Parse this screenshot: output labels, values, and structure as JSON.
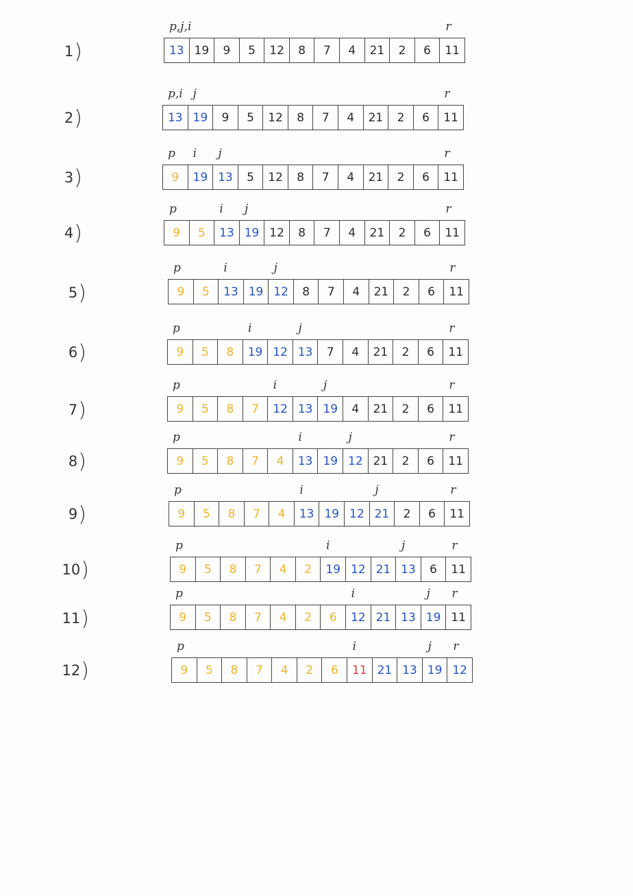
{
  "colors": {
    "black": "#2a2a2a",
    "blue": "#2454c6",
    "yellow": "#f0b429",
    "red": "#e23b3b"
  },
  "steps": [
    {
      "label": "1",
      "pointers": [
        {
          "text": "p,j,i",
          "cell": 0
        },
        {
          "text": "r",
          "cell": 11
        }
      ],
      "cells": [
        {
          "v": "13",
          "c": "blue"
        },
        {
          "v": "19",
          "c": "black"
        },
        {
          "v": "9",
          "c": "black"
        },
        {
          "v": "5",
          "c": "black"
        },
        {
          "v": "12",
          "c": "black"
        },
        {
          "v": "8",
          "c": "black"
        },
        {
          "v": "7",
          "c": "black"
        },
        {
          "v": "4",
          "c": "black"
        },
        {
          "v": "21",
          "c": "black"
        },
        {
          "v": "2",
          "c": "black"
        },
        {
          "v": "6",
          "c": "black"
        },
        {
          "v": "11",
          "c": "black"
        }
      ]
    },
    {
      "label": "2",
      "pointers": [
        {
          "text": "p,i",
          "cell": 0
        },
        {
          "text": "j",
          "cell": 1
        },
        {
          "text": "r",
          "cell": 11
        }
      ],
      "cells": [
        {
          "v": "13",
          "c": "blue"
        },
        {
          "v": "19",
          "c": "blue"
        },
        {
          "v": "9",
          "c": "black"
        },
        {
          "v": "5",
          "c": "black"
        },
        {
          "v": "12",
          "c": "black"
        },
        {
          "v": "8",
          "c": "black"
        },
        {
          "v": "7",
          "c": "black"
        },
        {
          "v": "4",
          "c": "black"
        },
        {
          "v": "21",
          "c": "black"
        },
        {
          "v": "2",
          "c": "black"
        },
        {
          "v": "6",
          "c": "black"
        },
        {
          "v": "11",
          "c": "black"
        }
      ]
    },
    {
      "label": "3",
      "pointers": [
        {
          "text": "p",
          "cell": 0
        },
        {
          "text": "i",
          "cell": 1
        },
        {
          "text": "j",
          "cell": 2
        },
        {
          "text": "r",
          "cell": 11
        }
      ],
      "cells": [
        {
          "v": "9",
          "c": "yellow"
        },
        {
          "v": "19",
          "c": "blue"
        },
        {
          "v": "13",
          "c": "blue"
        },
        {
          "v": "5",
          "c": "black"
        },
        {
          "v": "12",
          "c": "black"
        },
        {
          "v": "8",
          "c": "black"
        },
        {
          "v": "7",
          "c": "black"
        },
        {
          "v": "4",
          "c": "black"
        },
        {
          "v": "21",
          "c": "black"
        },
        {
          "v": "2",
          "c": "black"
        },
        {
          "v": "6",
          "c": "black"
        },
        {
          "v": "11",
          "c": "black"
        }
      ]
    },
    {
      "label": "4",
      "pointers": [
        {
          "text": "p",
          "cell": 0
        },
        {
          "text": "i",
          "cell": 2
        },
        {
          "text": "j",
          "cell": 3
        },
        {
          "text": "r",
          "cell": 11
        }
      ],
      "cells": [
        {
          "v": "9",
          "c": "yellow"
        },
        {
          "v": "5",
          "c": "yellow"
        },
        {
          "v": "13",
          "c": "blue"
        },
        {
          "v": "19",
          "c": "blue"
        },
        {
          "v": "12",
          "c": "black"
        },
        {
          "v": "8",
          "c": "black"
        },
        {
          "v": "7",
          "c": "black"
        },
        {
          "v": "4",
          "c": "black"
        },
        {
          "v": "21",
          "c": "black"
        },
        {
          "v": "2",
          "c": "black"
        },
        {
          "v": "6",
          "c": "black"
        },
        {
          "v": "11",
          "c": "black"
        }
      ]
    },
    {
      "label": "5",
      "pointers": [
        {
          "text": "p",
          "cell": 0
        },
        {
          "text": "i",
          "cell": 2
        },
        {
          "text": "j",
          "cell": 4
        },
        {
          "text": "r",
          "cell": 11
        }
      ],
      "cells": [
        {
          "v": "9",
          "c": "yellow"
        },
        {
          "v": "5",
          "c": "yellow"
        },
        {
          "v": "13",
          "c": "blue"
        },
        {
          "v": "19",
          "c": "blue"
        },
        {
          "v": "12",
          "c": "blue"
        },
        {
          "v": "8",
          "c": "black"
        },
        {
          "v": "7",
          "c": "black"
        },
        {
          "v": "4",
          "c": "black"
        },
        {
          "v": "21",
          "c": "black"
        },
        {
          "v": "2",
          "c": "black"
        },
        {
          "v": "6",
          "c": "black"
        },
        {
          "v": "11",
          "c": "black"
        }
      ]
    },
    {
      "label": "6",
      "pointers": [
        {
          "text": "p",
          "cell": 0
        },
        {
          "text": "i",
          "cell": 3
        },
        {
          "text": "j",
          "cell": 5
        },
        {
          "text": "r",
          "cell": 11
        }
      ],
      "cells": [
        {
          "v": "9",
          "c": "yellow"
        },
        {
          "v": "5",
          "c": "yellow"
        },
        {
          "v": "8",
          "c": "yellow"
        },
        {
          "v": "19",
          "c": "blue"
        },
        {
          "v": "12",
          "c": "blue"
        },
        {
          "v": "13",
          "c": "blue"
        },
        {
          "v": "7",
          "c": "black"
        },
        {
          "v": "4",
          "c": "black"
        },
        {
          "v": "21",
          "c": "black"
        },
        {
          "v": "2",
          "c": "black"
        },
        {
          "v": "6",
          "c": "black"
        },
        {
          "v": "11",
          "c": "black"
        }
      ]
    },
    {
      "label": "7",
      "pointers": [
        {
          "text": "p",
          "cell": 0
        },
        {
          "text": "i",
          "cell": 4
        },
        {
          "text": "j",
          "cell": 6
        },
        {
          "text": "r",
          "cell": 11
        }
      ],
      "cells": [
        {
          "v": "9",
          "c": "yellow"
        },
        {
          "v": "5",
          "c": "yellow"
        },
        {
          "v": "8",
          "c": "yellow"
        },
        {
          "v": "7",
          "c": "yellow"
        },
        {
          "v": "12",
          "c": "blue"
        },
        {
          "v": "13",
          "c": "blue"
        },
        {
          "v": "19",
          "c": "blue"
        },
        {
          "v": "4",
          "c": "black"
        },
        {
          "v": "21",
          "c": "black"
        },
        {
          "v": "2",
          "c": "black"
        },
        {
          "v": "6",
          "c": "black"
        },
        {
          "v": "11",
          "c": "black"
        }
      ]
    },
    {
      "label": "8",
      "pointers": [
        {
          "text": "p",
          "cell": 0
        },
        {
          "text": "i",
          "cell": 5
        },
        {
          "text": "j",
          "cell": 7
        },
        {
          "text": "r",
          "cell": 11
        }
      ],
      "cells": [
        {
          "v": "9",
          "c": "yellow"
        },
        {
          "v": "5",
          "c": "yellow"
        },
        {
          "v": "8",
          "c": "yellow"
        },
        {
          "v": "7",
          "c": "yellow"
        },
        {
          "v": "4",
          "c": "yellow"
        },
        {
          "v": "13",
          "c": "blue"
        },
        {
          "v": "19",
          "c": "blue"
        },
        {
          "v": "12",
          "c": "blue"
        },
        {
          "v": "21",
          "c": "black"
        },
        {
          "v": "2",
          "c": "black"
        },
        {
          "v": "6",
          "c": "black"
        },
        {
          "v": "11",
          "c": "black"
        }
      ]
    },
    {
      "label": "9",
      "pointers": [
        {
          "text": "p",
          "cell": 0
        },
        {
          "text": "i",
          "cell": 5
        },
        {
          "text": "j",
          "cell": 8
        },
        {
          "text": "r",
          "cell": 11
        }
      ],
      "cells": [
        {
          "v": "9",
          "c": "yellow"
        },
        {
          "v": "5",
          "c": "yellow"
        },
        {
          "v": "8",
          "c": "yellow"
        },
        {
          "v": "7",
          "c": "yellow"
        },
        {
          "v": "4",
          "c": "yellow"
        },
        {
          "v": "13",
          "c": "blue"
        },
        {
          "v": "19",
          "c": "blue"
        },
        {
          "v": "12",
          "c": "blue"
        },
        {
          "v": "21",
          "c": "blue"
        },
        {
          "v": "2",
          "c": "black"
        },
        {
          "v": "6",
          "c": "black"
        },
        {
          "v": "11",
          "c": "black"
        }
      ]
    },
    {
      "label": "10",
      "pointers": [
        {
          "text": "p",
          "cell": 0
        },
        {
          "text": "i",
          "cell": 6
        },
        {
          "text": "j",
          "cell": 9
        },
        {
          "text": "r",
          "cell": 11
        }
      ],
      "cells": [
        {
          "v": "9",
          "c": "yellow"
        },
        {
          "v": "5",
          "c": "yellow"
        },
        {
          "v": "8",
          "c": "yellow"
        },
        {
          "v": "7",
          "c": "yellow"
        },
        {
          "v": "4",
          "c": "yellow"
        },
        {
          "v": "2",
          "c": "yellow"
        },
        {
          "v": "19",
          "c": "blue"
        },
        {
          "v": "12",
          "c": "blue"
        },
        {
          "v": "21",
          "c": "blue"
        },
        {
          "v": "13",
          "c": "blue"
        },
        {
          "v": "6",
          "c": "black"
        },
        {
          "v": "11",
          "c": "black"
        }
      ]
    },
    {
      "label": "11",
      "pointers": [
        {
          "text": "p",
          "cell": 0
        },
        {
          "text": "i",
          "cell": 7
        },
        {
          "text": "j",
          "cell": 10
        },
        {
          "text": "r",
          "cell": 11
        }
      ],
      "cells": [
        {
          "v": "9",
          "c": "yellow"
        },
        {
          "v": "5",
          "c": "yellow"
        },
        {
          "v": "8",
          "c": "yellow"
        },
        {
          "v": "7",
          "c": "yellow"
        },
        {
          "v": "4",
          "c": "yellow"
        },
        {
          "v": "2",
          "c": "yellow"
        },
        {
          "v": "6",
          "c": "yellow"
        },
        {
          "v": "12",
          "c": "blue"
        },
        {
          "v": "21",
          "c": "blue"
        },
        {
          "v": "13",
          "c": "blue"
        },
        {
          "v": "19",
          "c": "blue"
        },
        {
          "v": "11",
          "c": "black"
        }
      ]
    },
    {
      "label": "12",
      "pointers": [
        {
          "text": "p",
          "cell": 0
        },
        {
          "text": "i",
          "cell": 7
        },
        {
          "text": "j",
          "cell": 10
        },
        {
          "text": "r",
          "cell": 11
        }
      ],
      "cells": [
        {
          "v": "9",
          "c": "yellow"
        },
        {
          "v": "5",
          "c": "yellow"
        },
        {
          "v": "8",
          "c": "yellow"
        },
        {
          "v": "7",
          "c": "yellow"
        },
        {
          "v": "4",
          "c": "yellow"
        },
        {
          "v": "2",
          "c": "yellow"
        },
        {
          "v": "6",
          "c": "yellow"
        },
        {
          "v": "11",
          "c": "red"
        },
        {
          "v": "21",
          "c": "blue"
        },
        {
          "v": "13",
          "c": "blue"
        },
        {
          "v": "19",
          "c": "blue"
        },
        {
          "v": "12",
          "c": "blue"
        }
      ]
    }
  ]
}
